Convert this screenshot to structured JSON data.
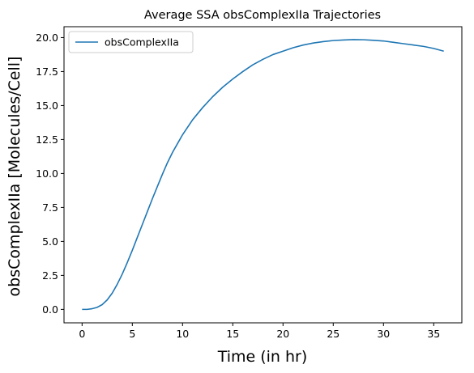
{
  "chart_data": {
    "type": "line",
    "title": "Average SSA obsComplexIIa Trajectories",
    "xlabel": "Time (in hr)",
    "ylabel": "obsComplexIIa [Molecules/Cell]",
    "xlim": [
      -1.8,
      37.8
    ],
    "ylim": [
      -0.99,
      20.8
    ],
    "xticks": [
      0,
      5,
      10,
      15,
      20,
      25,
      30,
      35
    ],
    "yticks": [
      0.0,
      2.5,
      5.0,
      7.5,
      10.0,
      12.5,
      15.0,
      17.5,
      20.0
    ],
    "xtick_labels": [
      "0",
      "5",
      "10",
      "15",
      "20",
      "25",
      "30",
      "35"
    ],
    "ytick_labels": [
      "0.0",
      "2.5",
      "5.0",
      "7.5",
      "10.0",
      "12.5",
      "15.0",
      "17.5",
      "20.0"
    ],
    "grid": false,
    "legend_position": "top-left",
    "series": [
      {
        "name": "obsComplexIIa",
        "color": "#1f77b4",
        "x": [
          0,
          0.5,
          1,
          1.5,
          2,
          2.5,
          3,
          3.5,
          4,
          4.5,
          5,
          5.5,
          6,
          6.5,
          7,
          7.5,
          8,
          8.5,
          9,
          9.5,
          10,
          11,
          12,
          13,
          14,
          15,
          16,
          17,
          18,
          19,
          20,
          21,
          22,
          23,
          24,
          25,
          26,
          27,
          28,
          29,
          30,
          31,
          32,
          33,
          34,
          35,
          36
        ],
        "y": [
          0.0,
          0.0,
          0.05,
          0.15,
          0.35,
          0.7,
          1.2,
          1.85,
          2.6,
          3.45,
          4.35,
          5.3,
          6.25,
          7.2,
          8.15,
          9.05,
          9.95,
          10.8,
          11.55,
          12.2,
          12.85,
          13.95,
          14.85,
          15.65,
          16.35,
          16.95,
          17.5,
          18.0,
          18.4,
          18.75,
          19.0,
          19.25,
          19.45,
          19.6,
          19.7,
          19.78,
          19.82,
          19.85,
          19.84,
          19.8,
          19.75,
          19.65,
          19.55,
          19.45,
          19.35,
          19.2,
          19.0
        ]
      }
    ]
  }
}
